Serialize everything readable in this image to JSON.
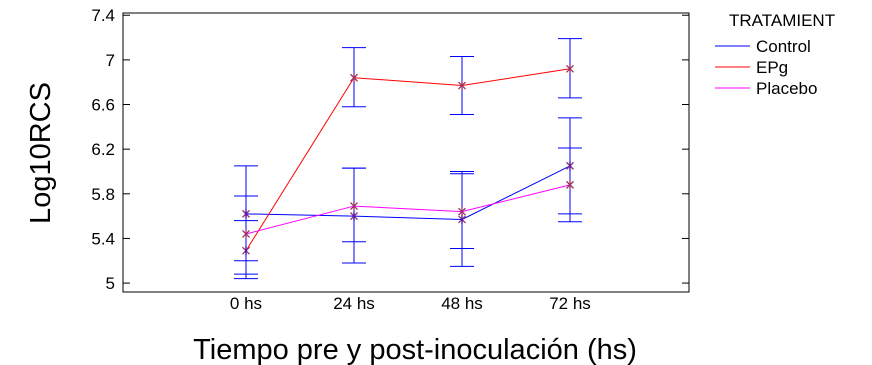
{
  "chart_data": {
    "type": "line",
    "xlabel": "Tiempo pre y post-inoculación (hs)",
    "ylabel": "Log10RCS",
    "categories": [
      "0 hs",
      "24 hs",
      "48 hs",
      "72 hs"
    ],
    "ylim": [
      4.92,
      7.42
    ],
    "yticks": [
      5,
      5.4,
      5.8,
      6.2,
      6.6,
      7,
      7.4
    ],
    "ytick_labels": [
      "5",
      "5.4",
      "5.8",
      "6.2",
      "6.6",
      "7",
      "7.4"
    ],
    "grid": false,
    "legend": {
      "title": "TRATAMIENT",
      "position": "top-right outside"
    },
    "marker_color": "#993366",
    "series": [
      {
        "name": "Control",
        "color": "#0000ff",
        "values": [
          5.62,
          5.6,
          5.57,
          6.05
        ],
        "error_low": [
          5.2,
          5.18,
          5.15,
          5.62
        ],
        "error_high": [
          6.05,
          6.03,
          5.98,
          6.48
        ]
      },
      {
        "name": "EPg",
        "color": "#ff0000",
        "values": [
          5.29,
          6.84,
          6.77,
          6.92
        ],
        "error_low": [
          5.04,
          6.58,
          6.51,
          6.66
        ],
        "error_high": [
          5.56,
          7.11,
          7.03,
          7.19
        ]
      },
      {
        "name": "Placebo",
        "color": "#ff00ff",
        "values": [
          5.44,
          5.69,
          5.64,
          5.88
        ],
        "error_low": [
          5.08,
          5.37,
          5.31,
          5.55
        ],
        "error_high": [
          5.78,
          6.03,
          6.0,
          6.21
        ]
      }
    ]
  }
}
